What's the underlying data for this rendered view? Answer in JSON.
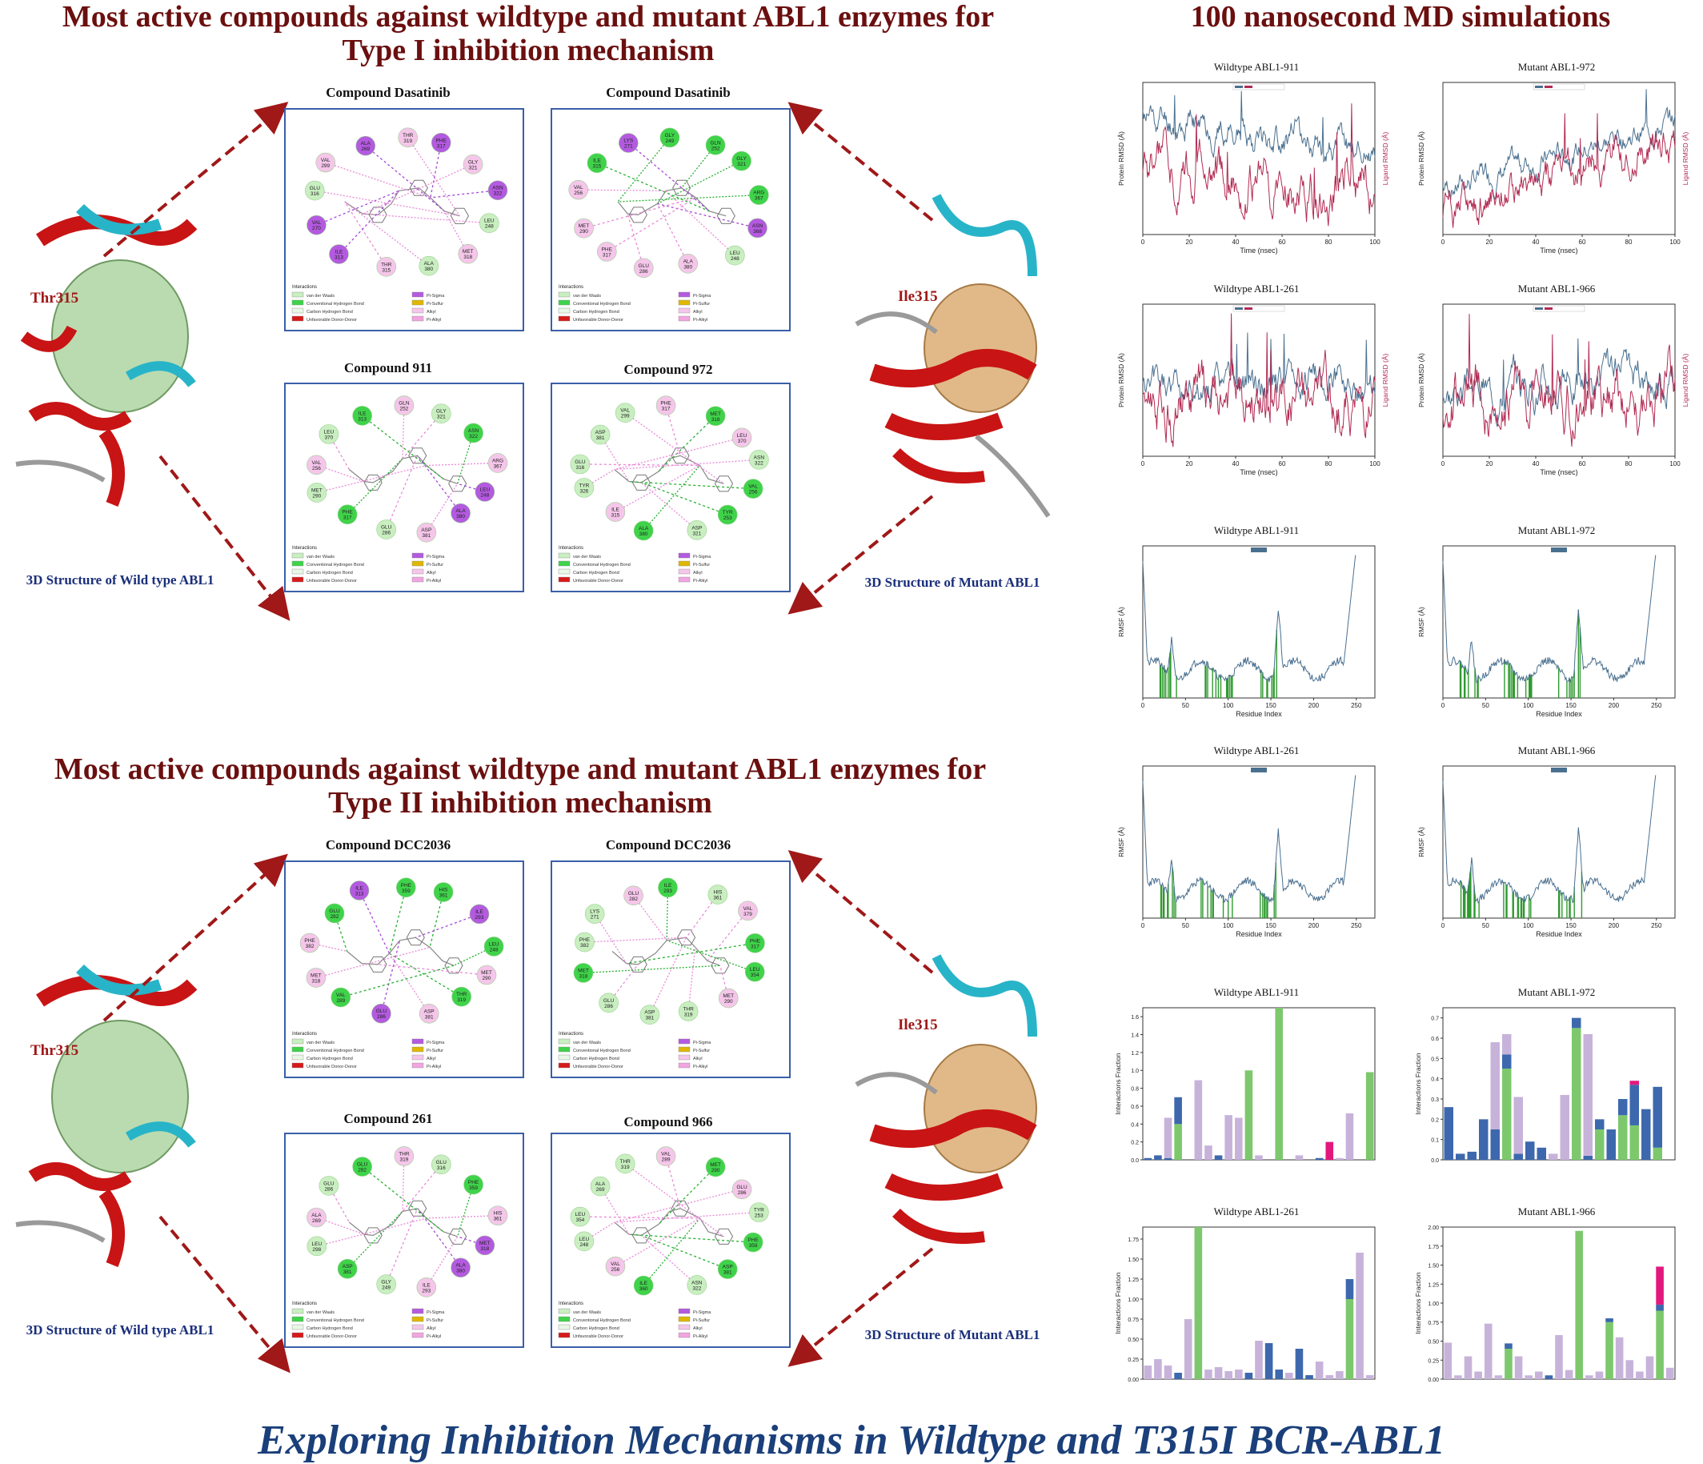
{
  "headings": {
    "type1_line1": "Most active compounds against wildtype and mutant ABL1  enzymes for",
    "type1_line2": "Type I inhibition mechanism",
    "type2_line1": "Most active compounds against wildtype and mutant ABL1  enzymes for",
    "type2_line2": "Type II inhibition mechanism",
    "md": "100 nanosecond MD simulations",
    "footer": "Exploring Inhibition Mechanisms in Wildtype and T315I BCR-ABL1"
  },
  "structures": {
    "wt_residue": "Thr315",
    "mut_residue": "Ile315",
    "wt_caption": "3D Structure of Wild type ABL1",
    "mut_caption": "3D Structure of Mutant ABL1"
  },
  "panels": {
    "type1": [
      {
        "title": "Compound Dasatinib",
        "residues": [
          "THR 319",
          "PHE 317",
          "GLY 321",
          "ASN 322",
          "LEU 248",
          "MET 318",
          "ALA 380",
          "THR 315",
          "ILE 313",
          "VAL 270",
          "GLU 316",
          "VAL 299",
          "ALA 269"
        ]
      },
      {
        "title": "Compound Dasatinib",
        "residues": [
          "GLY 249",
          "GLN 252",
          "GLY 321",
          "ARG 367",
          "ASN 368",
          "LEU 248",
          "ALA 380",
          "GLU 286",
          "PHE 317",
          "MET 290",
          "VAL 256",
          "ILE 315",
          "LYS 271"
        ]
      },
      {
        "title": "Compound 911",
        "residues": [
          "GLN 252",
          "GLY 321",
          "ASN 322",
          "ARG 367",
          "LEU 248",
          "ALA 380",
          "ASP 381",
          "GLU 286",
          "PHE 317",
          "MET 290",
          "VAL 256",
          "LEU 370",
          "ILE 313"
        ]
      },
      {
        "title": "Compound 972",
        "residues": [
          "PHE 317",
          "MET 318",
          "LEU 370",
          "ASN 322",
          "VAL 256",
          "TYR 253",
          "ASP 321",
          "ALA 380",
          "ILE 315",
          "TYR 326",
          "GLU 316",
          "ASP 381",
          "VAL 299"
        ]
      }
    ],
    "type2": [
      {
        "title": "Compound DCC2036",
        "residues": [
          "PHE 359",
          "HIS 361",
          "ILE 293",
          "LEU 248",
          "MET 290",
          "THR 319",
          "ASP 381",
          "GLU 286",
          "VAL 289",
          "MET 318",
          "PHE 382",
          "GLU 282",
          "ILE 313"
        ]
      },
      {
        "title": "Compound DCC2036",
        "residues": [
          "ILE 293",
          "HIS 361",
          "VAL 379",
          "PHE 317",
          "LEU 354",
          "MET 290",
          "THR 319",
          "ASP 381",
          "GLU 286",
          "MET 318",
          "PHE 382",
          "LYS 271",
          "GLU 282"
        ]
      },
      {
        "title": "Compound 261",
        "residues": [
          "THR 319",
          "GLU 316",
          "PHE 359",
          "HIS 361",
          "MET 318",
          "ALA 380",
          "ILE 293",
          "GLY 249",
          "ASP 381",
          "LEU 298",
          "ALA 269",
          "GLU 286",
          "GLU 282"
        ]
      },
      {
        "title": "Compound 966",
        "residues": [
          "VAL 289",
          "MET 290",
          "GLU 286",
          "TYR 253",
          "PHE 359",
          "ASP 381",
          "ASN 322",
          "ILE 360",
          "VAL 256",
          "LEU 248",
          "LEU 354",
          "ALA 269",
          "THR 319"
        ]
      }
    ],
    "legend_title": "Interactions",
    "legend_items": [
      "van der Waals",
      "Conventional Hydrogen Bond",
      "Carbon Hydrogen Bond",
      "Unfavorable Donor-Donor",
      "Pi-Sigma",
      "Pi-Sulfur",
      "Alkyl",
      "Pi-Alkyl"
    ]
  },
  "md_charts": [
    {
      "title": "Wildtype ABL1-911",
      "kind": "rmsd",
      "xlabel": "Time (nsec)",
      "ylabel": "Protein RMSD (Å)",
      "y2label": "Ligand RMSD (Å)",
      "xticks": [
        "0",
        "20",
        "40",
        "60",
        "80",
        "100"
      ],
      "seed": 11,
      "p": [
        3.3,
        2.5
      ],
      "l": [
        1.9,
        1.6
      ]
    },
    {
      "title": "Mutant ABL1-972",
      "kind": "rmsd",
      "xlabel": "Time (nsec)",
      "ylabel": "Protein RMSD (Å)",
      "y2label": "Ligand RMSD (Å)",
      "xticks": [
        "0",
        "20",
        "40",
        "60",
        "80",
        "100"
      ],
      "seed": 7,
      "p": [
        2.0,
        4.0
      ],
      "l": [
        1.2,
        3.6
      ]
    },
    {
      "title": "Wildtype ABL1-261",
      "kind": "rmsd",
      "xlabel": "Time (nsec)",
      "ylabel": "Protein RMSD (Å)",
      "y2label": "Ligand RMSD (Å)",
      "xticks": [
        "0",
        "20",
        "40",
        "60",
        "80",
        "100"
      ],
      "seed": 5,
      "p": [
        2.3,
        2.6
      ],
      "l": [
        2.1,
        1.9
      ]
    },
    {
      "title": "Mutant ABL1-966",
      "kind": "rmsd",
      "xlabel": "Time (nsec)",
      "ylabel": "Protein RMSD (Å)",
      "y2label": "Ligand RMSD (Å)",
      "xticks": [
        "0",
        "20",
        "40",
        "60",
        "80",
        "100"
      ],
      "seed": 3,
      "p": [
        1.3,
        1.6
      ],
      "l": [
        1.1,
        1.3
      ]
    },
    {
      "title": "Wildtype ABL1-911",
      "kind": "rmsf",
      "xlabel": "Residue Index",
      "ylabel": "RMSF (Å)",
      "legend": "C-alphas",
      "xticks": [
        "0",
        "50",
        "100",
        "150",
        "200",
        "250"
      ],
      "seed": 21
    },
    {
      "title": "Mutant ABL1-972",
      "kind": "rmsf",
      "xlabel": "Residue Index",
      "ylabel": "RMSF (Å)",
      "legend": "C-alphas",
      "xticks": [
        "0",
        "50",
        "100",
        "150",
        "200",
        "250"
      ],
      "seed": 22
    },
    {
      "title": "Wildtype ABL1-261",
      "kind": "rmsf",
      "xlabel": "Residue Index",
      "ylabel": "RMSF (Å)",
      "legend": "C-alphas",
      "xticks": [
        "0",
        "50",
        "100",
        "150",
        "200",
        "250"
      ],
      "seed": 23
    },
    {
      "title": "Mutant ABL1-966",
      "kind": "rmsf",
      "xlabel": "Residue Index",
      "ylabel": "RMSF (Å)",
      "legend": "C-alphas",
      "xticks": [
        "0",
        "50",
        "100",
        "150",
        "200",
        "250"
      ],
      "seed": 24
    },
    {
      "title": "Wildtype ABL1-911",
      "kind": "bars",
      "ylabel": "Interactions Fraction",
      "ymax": 1.7,
      "yticks": [
        "0.0",
        "0.2",
        "0.4",
        "0.6",
        "0.8",
        "1.0",
        "1.2",
        "1.4",
        "1.6"
      ],
      "bars": [
        [
          0,
          0.02,
          0,
          0
        ],
        [
          0,
          0.05,
          0,
          0
        ],
        [
          0,
          0.02,
          0.45,
          0
        ],
        [
          0.4,
          0.3,
          0,
          0
        ],
        [
          0,
          0,
          0,
          0
        ],
        [
          0,
          0,
          0.89,
          0
        ],
        [
          0,
          0,
          0.16,
          0
        ],
        [
          0,
          0.05,
          0,
          0
        ],
        [
          0,
          0,
          0.5,
          0
        ],
        [
          0,
          0,
          0.47,
          0
        ],
        [
          1.0,
          0,
          0,
          0
        ],
        [
          0,
          0,
          0.05,
          0
        ],
        [
          0,
          0,
          0,
          0
        ],
        [
          1.7,
          0,
          0,
          0
        ],
        [
          0,
          0,
          0,
          0
        ],
        [
          0,
          0,
          0.05,
          0
        ],
        [
          0,
          0,
          0,
          0
        ],
        [
          0,
          0.02,
          0,
          0
        ],
        [
          0,
          0,
          0,
          0.2
        ],
        [
          0,
          0,
          0.02,
          0
        ],
        [
          0,
          0,
          0.52,
          0
        ],
        [
          0,
          0,
          0,
          0
        ],
        [
          0.98,
          0,
          0,
          0
        ]
      ]
    },
    {
      "title": "Mutant ABL1-972",
      "kind": "bars",
      "ylabel": "Interactions Fraction",
      "ymax": 0.75,
      "yticks": [
        "0.0",
        "0.1",
        "0.2",
        "0.3",
        "0.4",
        "0.5",
        "0.6",
        "0.7"
      ],
      "bars": [
        [
          0,
          0.26,
          0,
          0
        ],
        [
          0,
          0.03,
          0,
          0
        ],
        [
          0,
          0.04,
          0,
          0
        ],
        [
          0,
          0.2,
          0,
          0
        ],
        [
          0,
          0.15,
          0.43,
          0
        ],
        [
          0.45,
          0.07,
          0.1,
          0
        ],
        [
          0,
          0.03,
          0.28,
          0
        ],
        [
          0,
          0.09,
          0,
          0
        ],
        [
          0,
          0.06,
          0,
          0
        ],
        [
          0,
          0,
          0.03,
          0
        ],
        [
          0,
          0,
          0.32,
          0
        ],
        [
          0.65,
          0.05,
          0,
          0
        ],
        [
          0,
          0.02,
          0.6,
          0
        ],
        [
          0.15,
          0.05,
          0,
          0
        ],
        [
          0,
          0.15,
          0,
          0
        ],
        [
          0.22,
          0.08,
          0,
          0
        ],
        [
          0.17,
          0.2,
          0,
          0.02
        ],
        [
          0,
          0.25,
          0,
          0
        ],
        [
          0.06,
          0.3,
          0,
          0
        ],
        [
          0,
          0,
          0,
          0
        ]
      ]
    },
    {
      "title": "Wildtype ABL1-261",
      "kind": "bars",
      "ylabel": "Interactions Fraction",
      "ymax": 1.9,
      "yticks": [
        "0.00",
        "0.25",
        "0.50",
        "0.75",
        "1.00",
        "1.25",
        "1.50",
        "1.75"
      ],
      "bars": [
        [
          0,
          0,
          0.17,
          0
        ],
        [
          0,
          0,
          0.25,
          0
        ],
        [
          0,
          0,
          0.17,
          0
        ],
        [
          0,
          0.08,
          0,
          0
        ],
        [
          0,
          0,
          0.75,
          0
        ],
        [
          1.9,
          0,
          0,
          0
        ],
        [
          0,
          0,
          0.12,
          0
        ],
        [
          0,
          0,
          0.15,
          0
        ],
        [
          0,
          0,
          0.1,
          0
        ],
        [
          0,
          0,
          0.12,
          0
        ],
        [
          0,
          0.08,
          0,
          0
        ],
        [
          0,
          0,
          0.48,
          0
        ],
        [
          0,
          0.45,
          0,
          0
        ],
        [
          0,
          0.12,
          0,
          0
        ],
        [
          0,
          0,
          0.08,
          0
        ],
        [
          0,
          0.38,
          0,
          0
        ],
        [
          0,
          0.05,
          0,
          0
        ],
        [
          0,
          0,
          0.22,
          0
        ],
        [
          0,
          0,
          0.05,
          0
        ],
        [
          0,
          0,
          0.1,
          0
        ],
        [
          1.0,
          0.25,
          0,
          0
        ],
        [
          0,
          0,
          1.58,
          0
        ],
        [
          0,
          0,
          0.05,
          0
        ]
      ]
    },
    {
      "title": "Mutant ABL1-966",
      "kind": "bars",
      "ylabel": "Interactions Fraction",
      "ymax": 2.0,
      "yticks": [
        "0.00",
        "0.25",
        "0.50",
        "0.75",
        "1.00",
        "1.25",
        "1.50",
        "1.75",
        "2.00"
      ],
      "bars": [
        [
          0,
          0,
          0.48,
          0
        ],
        [
          0,
          0,
          0.05,
          0
        ],
        [
          0,
          0,
          0.3,
          0
        ],
        [
          0,
          0,
          0.1,
          0
        ],
        [
          0,
          0,
          0.73,
          0
        ],
        [
          0,
          0,
          0.05,
          0
        ],
        [
          0.4,
          0.07,
          0,
          0
        ],
        [
          0,
          0,
          0.3,
          0
        ],
        [
          0,
          0,
          0.05,
          0
        ],
        [
          0,
          0,
          0.1,
          0
        ],
        [
          0,
          0.05,
          0,
          0
        ],
        [
          0,
          0,
          0.58,
          0
        ],
        [
          0,
          0,
          0.12,
          0
        ],
        [
          1.95,
          0,
          0,
          0
        ],
        [
          0,
          0,
          0.05,
          0
        ],
        [
          0,
          0,
          0.1,
          0
        ],
        [
          0.75,
          0.05,
          0,
          0
        ],
        [
          0,
          0,
          0.55,
          0
        ],
        [
          0,
          0,
          0.25,
          0
        ],
        [
          0,
          0,
          0.1,
          0
        ],
        [
          0,
          0,
          0.3,
          0
        ],
        [
          0.9,
          0.08,
          0,
          0.5
        ],
        [
          0,
          0,
          0.15,
          0
        ]
      ]
    }
  ],
  "colors": {
    "heading": "#6b0f0f",
    "footer": "#1a3f7a",
    "protein": "#4a7090",
    "ligand": "#b22a52",
    "green_bar": "#7dc86d",
    "blue_bar": "#3d68ad",
    "lavender_bar": "#c7b3da",
    "pink_bar": "#e2197d",
    "panel_border": "#3a5fa8",
    "arrow": "#a01818"
  }
}
